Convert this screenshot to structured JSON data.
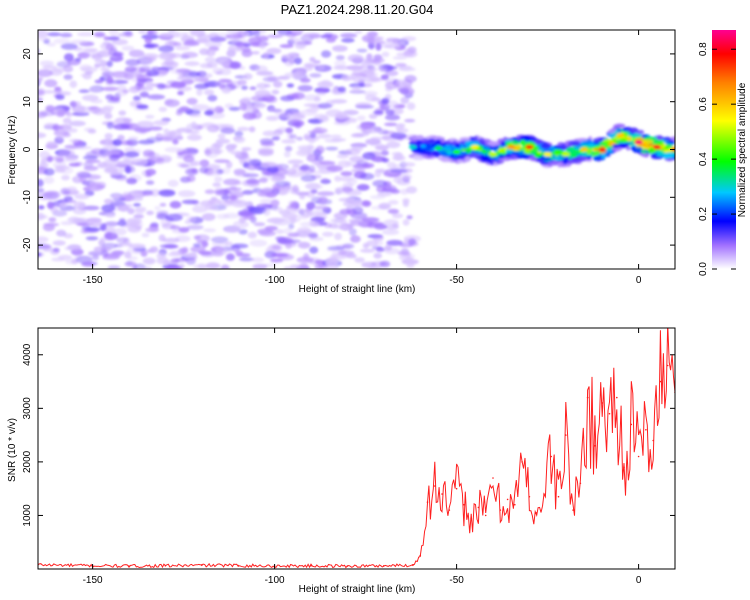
{
  "chart_data": [
    {
      "type": "heatmap",
      "title": "PAZ1.2024.298.11.20.G04",
      "xlabel": "Height of straight line (km)",
      "ylabel": "Frequency (Hz)",
      "xlim": [
        -165,
        10
      ],
      "ylim": [
        -25,
        25
      ],
      "x_ticks": [
        -150,
        -100,
        -50,
        0
      ],
      "x_tick_labels": [
        "-150",
        "-100",
        "-50",
        "0"
      ],
      "y_ticks": [
        -20,
        -10,
        0,
        10,
        20
      ],
      "y_tick_labels": [
        "-20",
        "-10",
        "0",
        "10",
        "20"
      ],
      "colorbar": {
        "label": "Normalized spectral amplitude",
        "range": [
          0,
          0.87
        ],
        "ticks": [
          0.0,
          0.2,
          0.4,
          0.6,
          0.8
        ],
        "tick_labels": [
          "0.0",
          "0.2",
          "0.4",
          "0.6",
          "0.8"
        ],
        "colormap": [
          "#ffffff",
          "#8000ff",
          "#0000ff",
          "#00ffff",
          "#00ff00",
          "#ffff00",
          "#ff8000",
          "#ff0000",
          "#ff0080"
        ]
      },
      "noise_region": {
        "x_range": [
          -165,
          -62
        ],
        "freq_range": [
          -25,
          25
        ],
        "amplitude_range": [
          0.0,
          0.12
        ]
      },
      "signal_track": {
        "x": [
          -62,
          -55,
          -50,
          -45,
          -40,
          -35,
          -30,
          -25,
          -20,
          -15,
          -10,
          -5,
          0,
          5,
          10
        ],
        "freq": [
          0.5,
          0.3,
          -0.5,
          0.5,
          -1.0,
          0.5,
          0.5,
          -1.0,
          -1.0,
          0.0,
          0.0,
          3.0,
          1.5,
          0.5,
          0.0
        ],
        "peak_amplitude": [
          0.3,
          0.35,
          0.4,
          0.55,
          0.5,
          0.65,
          0.75,
          0.55,
          0.5,
          0.6,
          0.8,
          0.6,
          0.85,
          0.8,
          0.7
        ]
      },
      "grid": false
    },
    {
      "type": "line",
      "title": "",
      "xlabel": "Height of straight line (km)",
      "ylabel": "SNR (10 * v/v)",
      "xlim": [
        -165,
        10
      ],
      "ylim": [
        0,
        4500
      ],
      "x_ticks": [
        -150,
        -100,
        -50,
        0
      ],
      "x_tick_labels": [
        "-150",
        "-100",
        "-50",
        "0"
      ],
      "y_ticks": [
        1000,
        2000,
        3000,
        4000
      ],
      "y_tick_labels": [
        "1000",
        "2000",
        "3000",
        "4000"
      ],
      "series": [
        {
          "color": "#ff2020",
          "x": [
            -165,
            -150,
            -140,
            -130,
            -120,
            -110,
            -100,
            -90,
            -80,
            -70,
            -62,
            -60,
            -58,
            -56,
            -54,
            -52,
            -50,
            -48,
            -46,
            -44,
            -42,
            -40,
            -38,
            -36,
            -34,
            -32,
            -30,
            -28,
            -26,
            -24,
            -22,
            -20,
            -18,
            -16,
            -14,
            -12,
            -10,
            -8,
            -6,
            -4,
            -2,
            0,
            2,
            4,
            6,
            8,
            10
          ],
          "y": [
            80,
            60,
            55,
            60,
            70,
            65,
            55,
            60,
            55,
            60,
            70,
            250,
            1250,
            1550,
            1400,
            1100,
            1500,
            1200,
            950,
            1150,
            1000,
            1700,
            1100,
            1300,
            1200,
            2000,
            1350,
            1050,
            1400,
            2100,
            1350,
            2500,
            1100,
            1600,
            3200,
            2300,
            3100,
            2900,
            3200,
            1900,
            2700,
            2100,
            2600,
            2400,
            3500,
            3800,
            3300
          ]
        }
      ],
      "grid": false
    }
  ]
}
